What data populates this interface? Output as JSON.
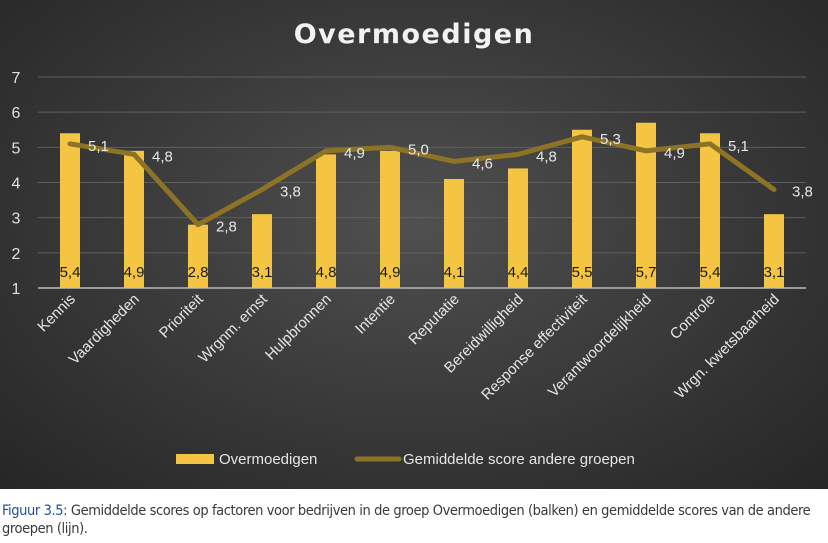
{
  "chart_data": {
    "type": "bar+line",
    "title": "Overmoedigen",
    "categories": [
      "Kennis",
      "Vaardigheden",
      "Prioriteit",
      "Wrgnm. ernst",
      "Hulpbronnen",
      "Intentie",
      "Reputatie",
      "Bereidwilligheid",
      "Response effectiviteit",
      "Verantwoordelijkheid",
      "Controle",
      "Wrgn. kwetsbaarheid"
    ],
    "series": [
      {
        "name": "Overmoedigen",
        "type": "bar",
        "color": "#f4c542",
        "values": [
          5.4,
          4.9,
          2.8,
          3.1,
          4.8,
          4.9,
          4.1,
          4.4,
          5.5,
          5.7,
          5.4,
          3.1
        ],
        "labels": [
          "5,4",
          "4,9",
          "2,8",
          "3,1",
          "4,8",
          "4,9",
          "4,1",
          "4,4",
          "5,5",
          "5,7",
          "5,4",
          "3,1"
        ]
      },
      {
        "name": "Gemiddelde score andere groepen",
        "type": "line",
        "color": "#8c7326",
        "values": [
          5.1,
          4.8,
          2.8,
          3.8,
          4.9,
          5.0,
          4.6,
          4.8,
          5.3,
          4.9,
          5.1,
          3.8
        ],
        "labels": [
          "5,1",
          "4,8",
          "2,8",
          "3,8",
          "4,9",
          "5,0",
          "4,6",
          "4,8",
          "5,3",
          "4,9",
          "5,1",
          "3,8"
        ]
      }
    ],
    "ylim": [
      1,
      7
    ],
    "yticks": [
      "1",
      "2",
      "3",
      "4",
      "5",
      "6",
      "7"
    ],
    "grid": true,
    "legend": "bottom"
  },
  "caption": {
    "label": "Figuur 3.5:",
    "text": " Gemiddelde scores op factoren voor bedrijven in de groep Overmoedigen (balken) en gemiddelde scores van de andere groepen (lijn)."
  }
}
